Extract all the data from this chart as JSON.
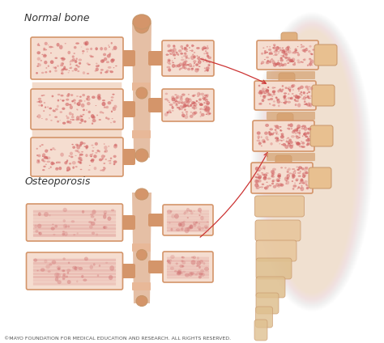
{
  "background_color": "#ffffff",
  "label_normal": "Normal bone",
  "label_osteo": "Osteoporosis",
  "copyright": "©MAYO FOUNDATION FOR MEDICAL EDUCATION AND RESEARCH. ALL RIGHTS RESERVED.",
  "text_color": "#333333",
  "copyright_color": "#555555",
  "arrow_color": "#cc3333",
  "label_fontsize": 9,
  "copyright_fontsize": 4.5,
  "bone_outer": "#d4956a",
  "bone_inner_normal": "#f5ddd0",
  "bone_inner_osteo": "#f5ddd0",
  "bone_spot_normal": "#d06060",
  "bone_spot_osteo": "#d07070",
  "spine_bg": "#fdf5ef",
  "spine_bone": "#e8c4a0",
  "spine_edge": "#c8966a"
}
